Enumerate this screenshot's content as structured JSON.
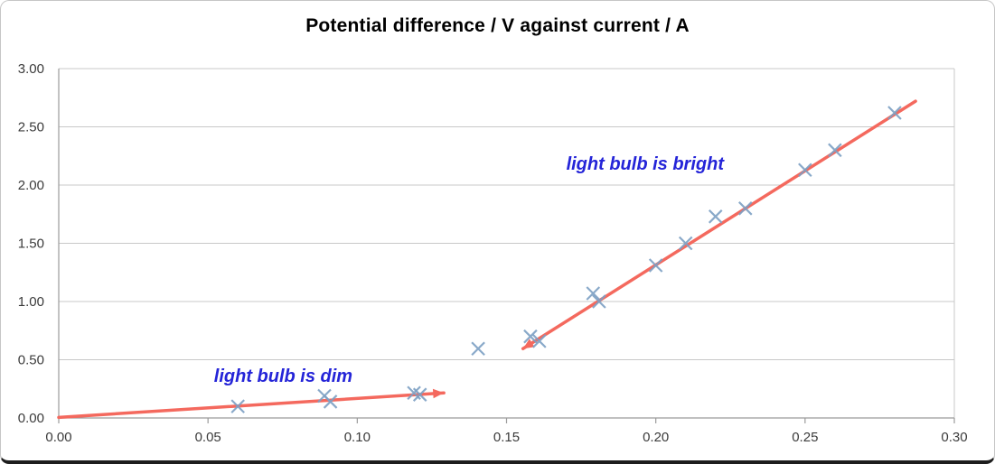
{
  "chart_data": {
    "type": "scatter",
    "title": "Potential difference / V against current / A",
    "xlabel": "",
    "ylabel": "",
    "xlim": [
      0.0,
      0.3
    ],
    "ylim": [
      0.0,
      3.0
    ],
    "xticks": [
      0.0,
      0.05,
      0.1,
      0.15,
      0.2,
      0.25,
      0.3
    ],
    "yticks": [
      0.0,
      0.5,
      1.0,
      1.5,
      2.0,
      2.5,
      3.0
    ],
    "grid": "horizontal",
    "marker": {
      "shape": "x",
      "color": "#7da0c4",
      "size": 7,
      "stroke_width": 2.2
    },
    "points": [
      [
        0.06,
        0.1
      ],
      [
        0.089,
        0.19
      ],
      [
        0.091,
        0.14
      ],
      [
        0.119,
        0.215
      ],
      [
        0.121,
        0.2
      ],
      [
        0.1405,
        0.595
      ],
      [
        0.158,
        0.7
      ],
      [
        0.161,
        0.66
      ],
      [
        0.179,
        1.07
      ],
      [
        0.181,
        1.0
      ],
      [
        0.2,
        1.31
      ],
      [
        0.21,
        1.5
      ],
      [
        0.22,
        1.73
      ],
      [
        0.23,
        1.8
      ],
      [
        0.25,
        2.13
      ],
      [
        0.26,
        2.3
      ],
      [
        0.28,
        2.62
      ]
    ],
    "arrows": [
      {
        "name": "dim-arrow",
        "from": [
          0.0,
          0.005
        ],
        "to": [
          0.129,
          0.215
        ],
        "color": "#f4695e"
      },
      {
        "name": "bright-arrow",
        "from": [
          0.287,
          2.72
        ],
        "to": [
          0.1555,
          0.595
        ],
        "color": "#f4695e"
      }
    ],
    "annotations": [
      {
        "name": "dim-label",
        "text": "light bulb is dim",
        "x": 0.052,
        "y": 0.31,
        "color": "#2424d8"
      },
      {
        "name": "bright-label",
        "text": "light bulb is bright",
        "x": 0.17,
        "y": 2.13,
        "color": "#2424d8"
      }
    ],
    "colors": {
      "gridline": "#c8c8c8",
      "axis": "#9b9b9b",
      "plot_border": "#c8c8c8"
    }
  }
}
